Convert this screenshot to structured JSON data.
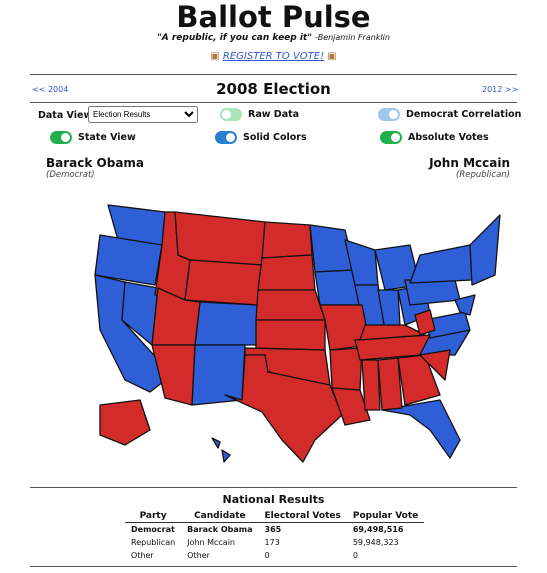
{
  "header": {
    "title": "Ballot Pulse",
    "quote": "\"A republic, if you can keep it\"",
    "quote_author": "-Benjamin Franklin",
    "register_link": "REGISTER TO VOTE!"
  },
  "nav": {
    "previous": "<< 2004",
    "current": "2008 Election",
    "next": "2012 >>"
  },
  "controls": {
    "data_view_label": "Data View:",
    "data_view_selected": "Election Results",
    "toggles": [
      {
        "label": "Raw Data",
        "on": false,
        "color": "#a8e6b8"
      },
      {
        "label": "Democrat Correlation",
        "on": true,
        "color": "#9cc7ee"
      },
      {
        "label": "State View",
        "on": true,
        "color": "#22b04b"
      },
      {
        "label": "Solid Colors",
        "on": true,
        "color": "#2a7fd4"
      },
      {
        "label": "Absolute Votes",
        "on": true,
        "color": "#22b04b"
      }
    ]
  },
  "candidates": {
    "democrat": {
      "name": "Barack Obama",
      "party": "(Democrat)"
    },
    "republican": {
      "name": "John Mccain",
      "party": "(Republican)"
    }
  },
  "results": {
    "title": "National Results",
    "columns": [
      "Party",
      "Candidate",
      "Electoral Votes",
      "Popular Vote"
    ],
    "rows": [
      [
        "Democrat",
        "Barack Obama",
        "365",
        "69,498,516"
      ],
      [
        "Republican",
        "John Mccain",
        "173",
        "59,948,323"
      ],
      [
        "Other",
        "Other",
        "0",
        "0"
      ]
    ]
  }
}
